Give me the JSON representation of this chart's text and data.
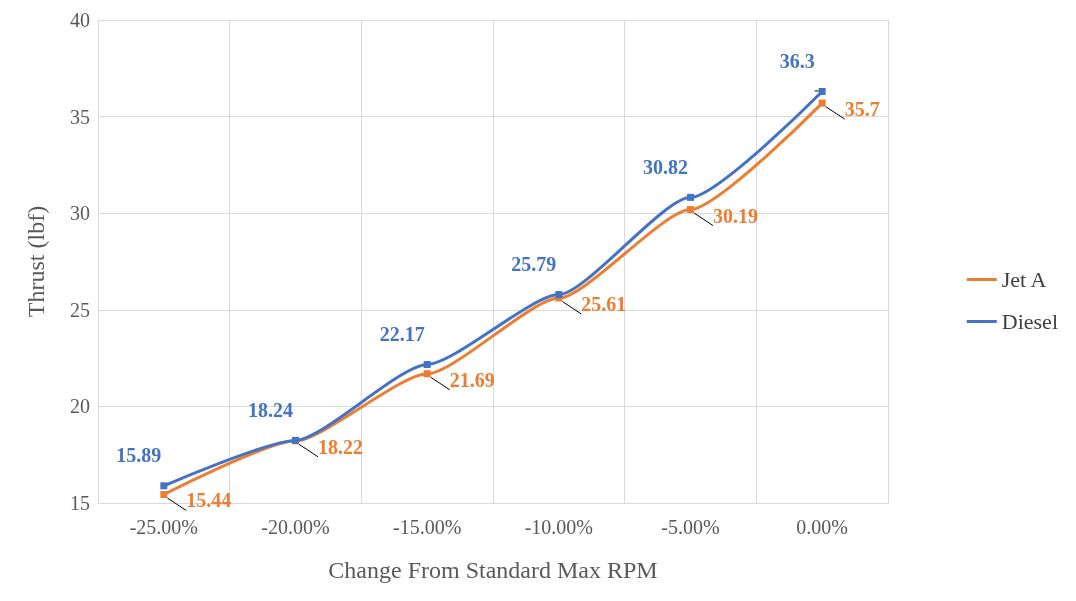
{
  "chart_data": {
    "type": "line",
    "xlabel": "Change From Standard Max RPM",
    "ylabel": "Thrust (lbf)",
    "categories": [
      "-25.00%",
      "-20.00%",
      "-15.00%",
      "-10.00%",
      "-5.00%",
      "0.00%"
    ],
    "series": [
      {
        "name": "Jet A",
        "color": "#ed7d31",
        "values": [
          15.44,
          18.22,
          21.69,
          25.61,
          30.19,
          35.7
        ]
      },
      {
        "name": "Diesel",
        "color": "#4472c4",
        "values": [
          15.89,
          18.24,
          22.17,
          25.79,
          30.82,
          36.3
        ]
      }
    ],
    "ylim": [
      15,
      40
    ],
    "yticks": [
      15,
      20,
      25,
      30,
      35,
      40
    ],
    "grid": true,
    "legend": "right",
    "marker": "square",
    "line_style": "solid",
    "data_labels": true
  }
}
